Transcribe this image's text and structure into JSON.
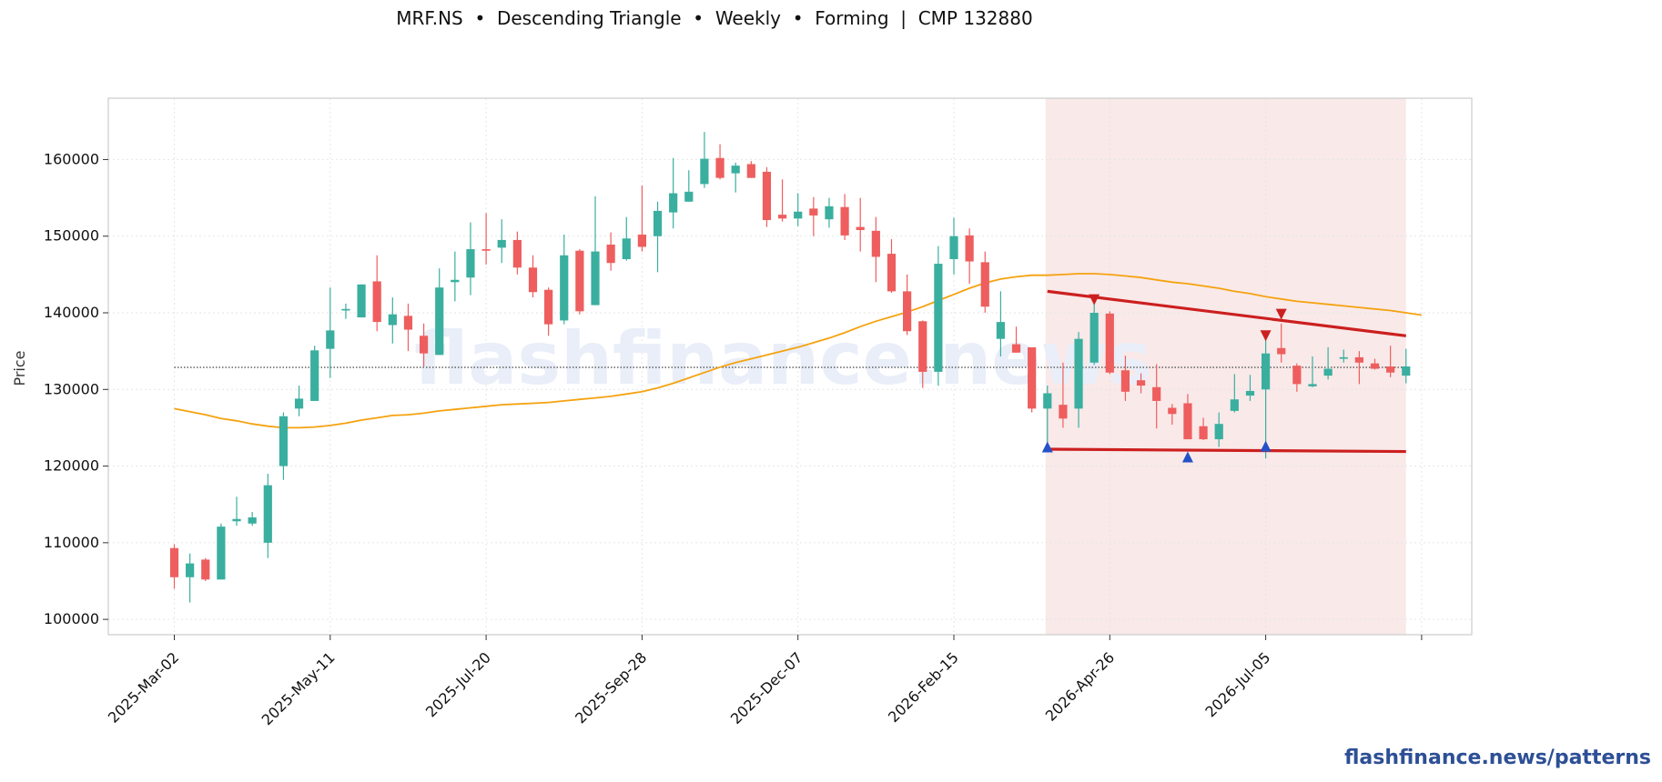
{
  "title": "MRF.NS  •  Descending Triangle  •  Weekly  •  Forming  |  CMP 132880",
  "watermark": "flashfinance.news",
  "footer": "flashfinance.news/patterns",
  "colors": {
    "up": "#3aaf9f",
    "down": "#ee5e5e",
    "ma": "#f5a20f",
    "pattern": "#cc1f1f",
    "zone": "#f9e9e9",
    "marker_low": "#2451c7",
    "marker_high": "#cc1f1f",
    "ref_line": "#444444"
  },
  "chart_data": {
    "type": "candlestick",
    "ylabel": "Price",
    "xlabel": "",
    "ylim": [
      98000,
      168000
    ],
    "yticks": [
      100000,
      110000,
      120000,
      130000,
      140000,
      150000,
      160000
    ],
    "xtick_labels": [
      {
        "label": "2025-Mar-02",
        "index": 0
      },
      {
        "label": "2025-May-11",
        "index": 10
      },
      {
        "label": "2025-Jul-20",
        "index": 20
      },
      {
        "label": "2025-Sep-28",
        "index": 30
      },
      {
        "label": "2025-Dec-07",
        "index": 40
      },
      {
        "label": "2026-Feb-15",
        "index": 50
      },
      {
        "label": "2026-Apr-26",
        "index": 60
      },
      {
        "label": "2026-Jul-05",
        "index": 70
      },
      {
        "label": "",
        "index": 80
      }
    ],
    "grid": true,
    "candles": [
      [
        109300,
        109800,
        104000,
        105500
      ],
      [
        105500,
        108600,
        102200,
        107300
      ],
      [
        107800,
        108000,
        105000,
        105200
      ],
      [
        105200,
        112500,
        105200,
        112100
      ],
      [
        112800,
        116000,
        112200,
        113100
      ],
      [
        112500,
        114000,
        112200,
        113300
      ],
      [
        110000,
        119000,
        108000,
        117500
      ],
      [
        120000,
        127000,
        118200,
        126500
      ],
      [
        127500,
        130500,
        126500,
        128800
      ],
      [
        128500,
        135700,
        128500,
        135100
      ],
      [
        135300,
        143300,
        131500,
        137700
      ],
      [
        140300,
        141200,
        139200,
        140500
      ],
      [
        139400,
        143700,
        139400,
        143700
      ],
      [
        144100,
        147500,
        137600,
        138800
      ],
      [
        138400,
        142000,
        136000,
        139800
      ],
      [
        139600,
        141200,
        135000,
        137800
      ],
      [
        137000,
        138600,
        133000,
        134700
      ],
      [
        134500,
        145800,
        134500,
        143300
      ],
      [
        144000,
        148000,
        141500,
        144300
      ],
      [
        144600,
        151800,
        142300,
        148300
      ],
      [
        148300,
        153000,
        146300,
        148100
      ],
      [
        148500,
        152200,
        146500,
        149500
      ],
      [
        149500,
        150600,
        145000,
        145900
      ],
      [
        145900,
        147500,
        142000,
        142700
      ],
      [
        143000,
        143300,
        137000,
        138500
      ],
      [
        139000,
        150200,
        138500,
        147500
      ],
      [
        148100,
        148300,
        139800,
        140200
      ],
      [
        141000,
        155200,
        141000,
        148000
      ],
      [
        148900,
        150500,
        145500,
        146500
      ],
      [
        147000,
        152500,
        146800,
        149700
      ],
      [
        150200,
        156600,
        148000,
        148600
      ],
      [
        150000,
        154500,
        145300,
        153300
      ],
      [
        153100,
        160200,
        151000,
        155600
      ],
      [
        154500,
        158600,
        154500,
        155800
      ],
      [
        156800,
        163600,
        156300,
        160100
      ],
      [
        160200,
        162000,
        157400,
        157600
      ],
      [
        158200,
        159600,
        155700,
        159200
      ],
      [
        159400,
        159800,
        157600,
        157600
      ],
      [
        158400,
        159000,
        151200,
        152100
      ],
      [
        152800,
        157400,
        151900,
        152300
      ],
      [
        152300,
        155600,
        151300,
        153200
      ],
      [
        153600,
        155100,
        150000,
        152700
      ],
      [
        152200,
        155000,
        151100,
        153900
      ],
      [
        153800,
        155500,
        149500,
        150100
      ],
      [
        151200,
        155000,
        148000,
        150800
      ],
      [
        150700,
        152500,
        144000,
        147300
      ],
      [
        147700,
        149600,
        142600,
        142800
      ],
      [
        142800,
        145000,
        137100,
        137600
      ],
      [
        138900,
        139000,
        130200,
        132300
      ],
      [
        132300,
        148700,
        130500,
        146400
      ],
      [
        147000,
        152400,
        145000,
        150000
      ],
      [
        150100,
        151000,
        143800,
        146700
      ],
      [
        146600,
        148000,
        140000,
        140800
      ],
      [
        136600,
        142800,
        134300,
        138800
      ],
      [
        135900,
        138200,
        134800,
        134800
      ],
      [
        135500,
        135500,
        127000,
        127500
      ],
      [
        127500,
        130500,
        122500,
        129500
      ],
      [
        128000,
        133500,
        125000,
        126200
      ],
      [
        127500,
        137500,
        125000,
        136600
      ],
      [
        133500,
        141800,
        133200,
        140000
      ],
      [
        139900,
        140200,
        132000,
        132200
      ],
      [
        132500,
        134400,
        128500,
        129700
      ],
      [
        131200,
        132100,
        129500,
        130500
      ],
      [
        130300,
        133300,
        124900,
        128500
      ],
      [
        127600,
        128100,
        125400,
        126800
      ],
      [
        128200,
        129400,
        123500,
        123500
      ],
      [
        125200,
        126300,
        123400,
        123500
      ],
      [
        123500,
        127000,
        122500,
        125500
      ],
      [
        127200,
        132000,
        127000,
        128700
      ],
      [
        129200,
        131900,
        128500,
        129800
      ],
      [
        130000,
        137500,
        121000,
        134700
      ],
      [
        135400,
        138600,
        133500,
        134600
      ],
      [
        133100,
        133400,
        129700,
        130700
      ],
      [
        130400,
        134300,
        130300,
        130700
      ],
      [
        131800,
        135500,
        131300,
        132700
      ],
      [
        134000,
        135200,
        133500,
        134200
      ],
      [
        134200,
        135000,
        130700,
        133500
      ],
      [
        133400,
        134000,
        132600,
        132700
      ],
      [
        133000,
        135700,
        131600,
        132200
      ],
      [
        131800,
        135300,
        130800,
        133000
      ]
    ],
    "ma": [
      127500,
      127100,
      126700,
      126200,
      125900,
      125500,
      125200,
      125000,
      125000,
      125100,
      125300,
      125600,
      126000,
      126300,
      126600,
      126700,
      126900,
      127200,
      127400,
      127600,
      127800,
      128000,
      128100,
      128200,
      128300,
      128500,
      128700,
      128900,
      129100,
      129400,
      129700,
      130200,
      130800,
      131500,
      132200,
      132900,
      133500,
      134000,
      134500,
      135000,
      135500,
      136100,
      136700,
      137400,
      138200,
      138900,
      139500,
      140100,
      140800,
      141600,
      142400,
      143200,
      143900,
      144400,
      144700,
      144900,
      144900,
      145000,
      145100,
      145100,
      145000,
      144800,
      144600,
      144300,
      144000,
      143800,
      143500,
      143200,
      142800,
      142500,
      142100,
      141800,
      141500,
      141300,
      141100,
      140900,
      140700,
      140500,
      140300,
      140000,
      139700
    ],
    "reference_price": 132880,
    "pattern": {
      "name": "Descending Triangle",
      "start_index": 56,
      "end_index": 79,
      "upper_line": [
        [
          56,
          142800
        ],
        [
          79,
          137000
        ]
      ],
      "lower_line": [
        [
          56,
          122200
        ],
        [
          79,
          121900
        ]
      ],
      "lows": [
        [
          56,
          122500
        ],
        [
          65,
          121200
        ],
        [
          70,
          122600
        ]
      ],
      "highs": [
        [
          59,
          141700
        ],
        [
          70,
          137000
        ],
        [
          71,
          139800
        ]
      ]
    }
  }
}
